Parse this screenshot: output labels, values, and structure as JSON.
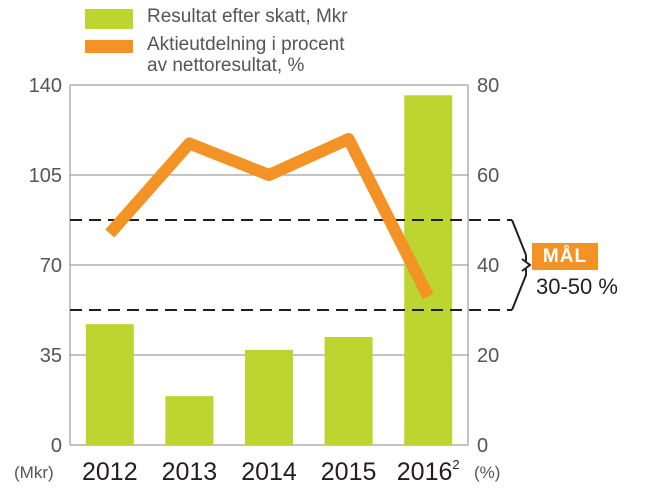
{
  "chart_data": {
    "type": "bar+line",
    "categories": [
      "2012",
      "2013",
      "2014",
      "2015",
      "2016"
    ],
    "category_superscripts": [
      "",
      "",
      "",
      "",
      "2"
    ],
    "series": [
      {
        "name": "Resultat efter skatt, Mkr",
        "type": "bar",
        "axis": "left",
        "color": "#bcd530",
        "values": [
          47,
          19,
          37,
          42,
          136
        ]
      },
      {
        "name": "Aktieutdelning i procent av nettoresultat, %",
        "type": "line",
        "axis": "right",
        "color": "#f39325",
        "values": [
          47,
          67,
          60,
          68,
          33
        ]
      }
    ],
    "y_left": {
      "lim": [
        0,
        140
      ],
      "ticks": [
        "0",
        "35",
        "70",
        "105",
        "140"
      ],
      "unit": "(Mkr)"
    },
    "y_right": {
      "lim": [
        0,
        80
      ],
      "ticks": [
        "0",
        "20",
        "40",
        "60",
        "80"
      ],
      "unit": "(%)"
    },
    "goal_band": {
      "from": 30,
      "to": 50,
      "axis": "right",
      "label": "MÅL",
      "range_text": "30-50 %"
    },
    "grid": true
  },
  "legend": {
    "bar_label": "Resultat efter skatt, Mkr",
    "line_label_1": "Aktieutdelning i procent",
    "line_label_2": "av nettoresultat, %"
  }
}
